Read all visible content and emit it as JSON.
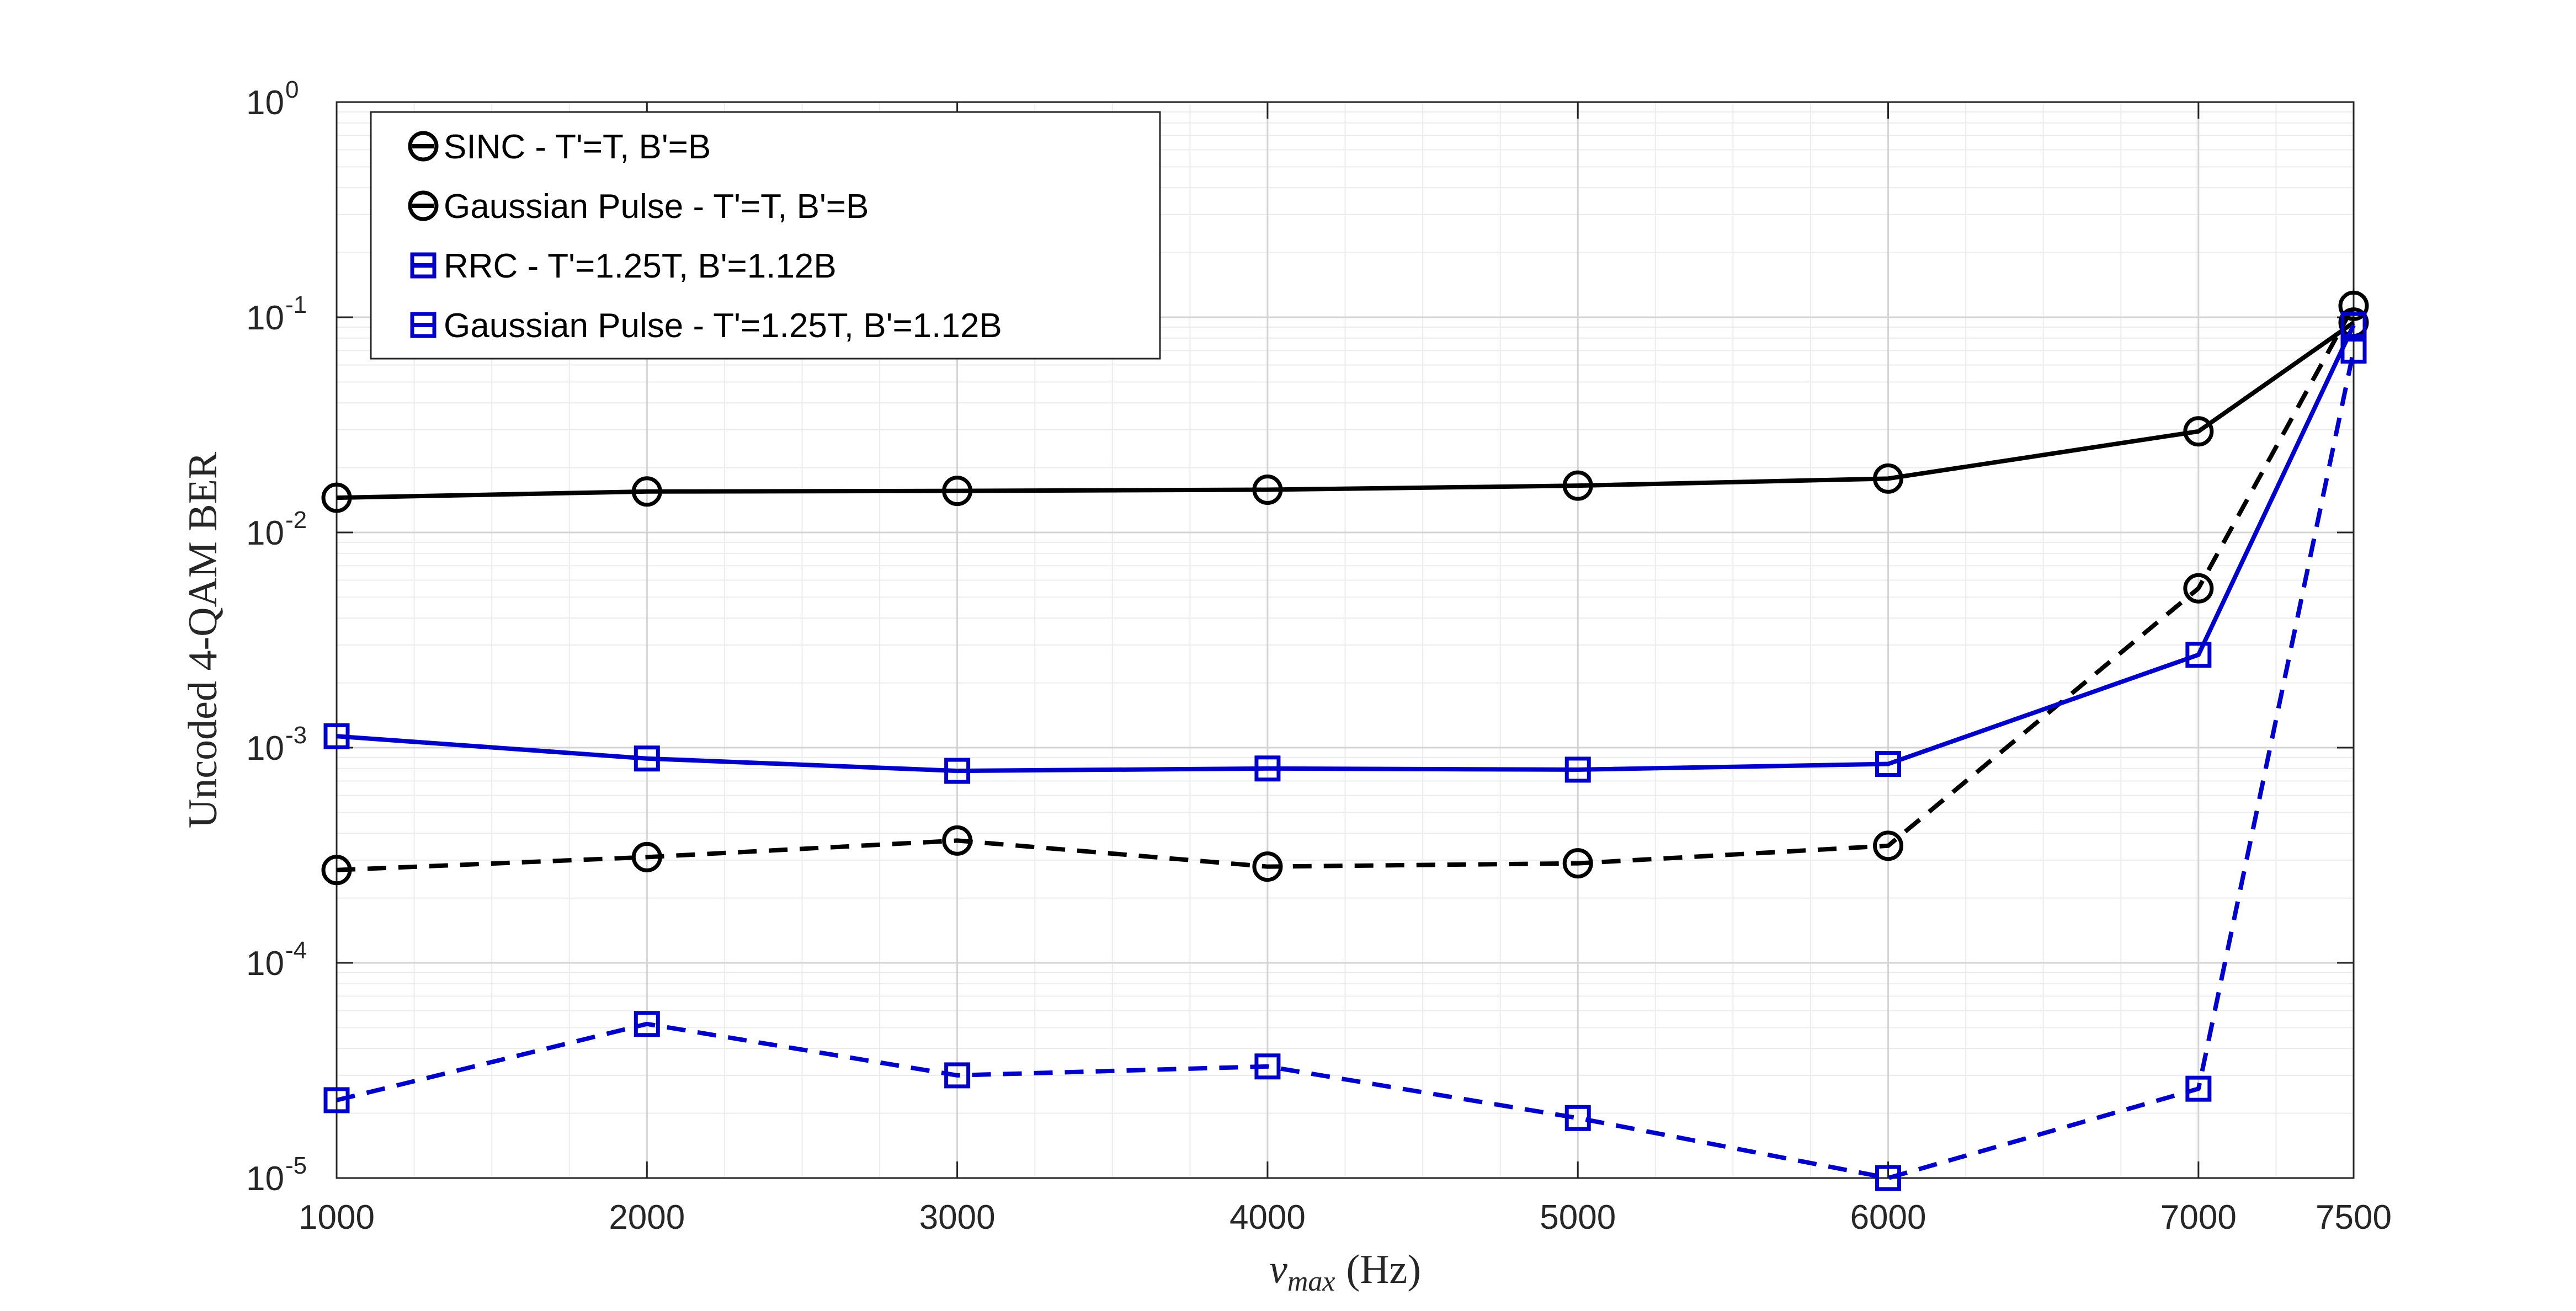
{
  "chart_data": {
    "type": "line",
    "title": "",
    "xlabel": "ν",
    "xlabel_sub": "max",
    "xlabel_unit": "(Hz)",
    "ylabel": "Uncoded 4-QAM BER",
    "x_ticks": [
      1000,
      2000,
      3000,
      4000,
      5000,
      6000,
      7000,
      7500
    ],
    "x_tick_labels": [
      "1000",
      "2000",
      "3000",
      "4000",
      "5000",
      "6000",
      "7000",
      "7500"
    ],
    "xlim": [
      1000,
      7500
    ],
    "y_scale": "log",
    "ylim": [
      1e-05,
      1
    ],
    "y_ticks": [
      1e-05,
      0.0001,
      0.001,
      0.01,
      0.1,
      1
    ],
    "y_tick_base": "10",
    "y_tick_exponents": [
      "-5",
      "-4",
      "-3",
      "-2",
      "-1",
      "0"
    ],
    "grid": true,
    "minor_grid": true,
    "legend_position": "top-left",
    "x": [
      1000,
      2000,
      3000,
      4000,
      5000,
      6000,
      7000,
      7500
    ],
    "series": [
      {
        "name": "SINC - T'=T, B'=B",
        "color": "#000000",
        "line_style": "solid",
        "marker": "circle",
        "values": [
          0.0145,
          0.0155,
          0.0156,
          0.0158,
          0.0165,
          0.0178,
          0.0295,
          0.0945
        ]
      },
      {
        "name": "Gaussian Pulse - T'=T, B'=B",
        "color": "#000000",
        "line_style": "dashed",
        "marker": "circle",
        "values": [
          0.00027,
          0.00031,
          0.00037,
          0.00028,
          0.00029,
          0.00035,
          0.0055,
          0.113
        ]
      },
      {
        "name": "RRC - T'=1.25T, B'=1.12B",
        "color": "#0000cc",
        "line_style": "solid",
        "marker": "square",
        "values": [
          0.00113,
          0.00089,
          0.00078,
          0.0008,
          0.00079,
          0.00084,
          0.0027,
          0.092
        ]
      },
      {
        "name": "Gaussian Pulse - T'=1.25T, B'=1.12B",
        "color": "#0000cc",
        "line_style": "dashed",
        "marker": "square",
        "values": [
          2.3e-05,
          5.2e-05,
          3e-05,
          3.3e-05,
          1.9e-05,
          1e-05,
          2.6e-05,
          0.07
        ]
      }
    ]
  }
}
